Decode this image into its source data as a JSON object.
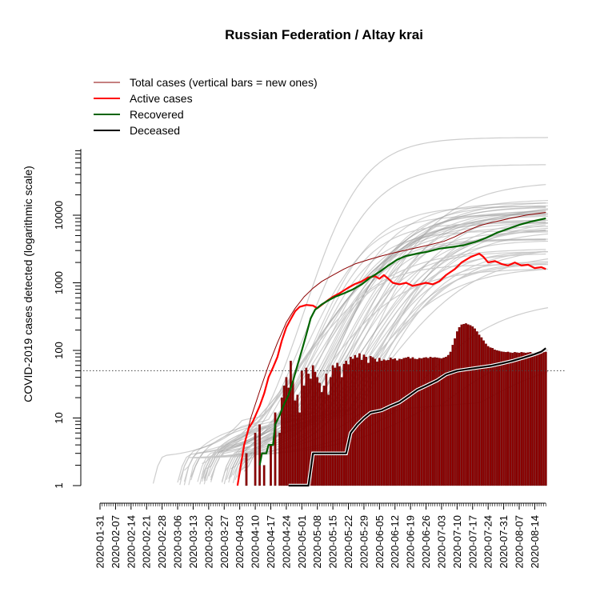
{
  "chart_data": {
    "type": "line",
    "title": "Russian Federation / Altay krai",
    "ylabel": "COVID-2019 cases detected (logarithmic scale)",
    "xlabel": "",
    "yscale": "log",
    "ylim": [
      1,
      100000
    ],
    "y_ticks": [
      "1",
      "10",
      "100",
      "1000",
      "10000"
    ],
    "x_tick_labels": [
      "2020-01-31",
      "2020-02-07",
      "2020-02-14",
      "2020-02-21",
      "2020-02-28",
      "2020-03-06",
      "2020-03-13",
      "2020-03-20",
      "2020-03-27",
      "2020-04-03",
      "2020-04-10",
      "2020-04-17",
      "2020-04-24",
      "2020-05-01",
      "2020-05-08",
      "2020-05-15",
      "2020-05-22",
      "2020-05-29",
      "2020-06-05",
      "2020-06-12",
      "2020-06-19",
      "2020-06-26",
      "2020-07-03",
      "2020-07-10",
      "2020-07-17",
      "2020-07-24",
      "2020-07-31",
      "2020-08-07",
      "2020-08-14"
    ],
    "x_range": [
      "2020-01-31",
      "2020-08-19"
    ],
    "reference_line": 50,
    "legend_position": "top-left",
    "colors": {
      "total": "#8b0000",
      "active": "#ff0000",
      "recovered": "#006400",
      "deceased": "#000000",
      "bars": "#8b0000",
      "background_regions": "#999999"
    },
    "series": [
      {
        "name": "Total cases (vertical bars = new ones)",
        "key": "total",
        "points": [
          [
            "2020-04-02",
            1
          ],
          [
            "2020-04-05",
            4
          ],
          [
            "2020-04-08",
            10
          ],
          [
            "2020-04-12",
            25
          ],
          [
            "2020-04-16",
            60
          ],
          [
            "2020-04-20",
            130
          ],
          [
            "2020-04-24",
            260
          ],
          [
            "2020-04-28",
            420
          ],
          [
            "2020-05-02",
            620
          ],
          [
            "2020-05-06",
            830
          ],
          [
            "2020-05-10",
            1050
          ],
          [
            "2020-05-15",
            1300
          ],
          [
            "2020-05-20",
            1600
          ],
          [
            "2020-05-25",
            1900
          ],
          [
            "2020-05-31",
            2200
          ],
          [
            "2020-06-06",
            2500
          ],
          [
            "2020-06-12",
            2800
          ],
          [
            "2020-06-20",
            3200
          ],
          [
            "2020-06-27",
            3600
          ],
          [
            "2020-07-04",
            4100
          ],
          [
            "2020-07-09",
            4800
          ],
          [
            "2020-07-14",
            5800
          ],
          [
            "2020-07-20",
            7000
          ],
          [
            "2020-07-27",
            8000
          ],
          [
            "2020-08-03",
            9000
          ],
          [
            "2020-08-10",
            10000
          ],
          [
            "2020-08-19",
            11000
          ]
        ]
      },
      {
        "name": "Active cases",
        "key": "active",
        "points": [
          [
            "2020-04-02",
            1
          ],
          [
            "2020-04-05",
            4
          ],
          [
            "2020-04-07",
            7
          ],
          [
            "2020-04-09",
            9
          ],
          [
            "2020-04-12",
            15
          ],
          [
            "2020-04-14",
            23
          ],
          [
            "2020-04-16",
            40
          ],
          [
            "2020-04-18",
            56
          ],
          [
            "2020-04-20",
            80
          ],
          [
            "2020-04-22",
            140
          ],
          [
            "2020-04-24",
            220
          ],
          [
            "2020-04-26",
            290
          ],
          [
            "2020-04-28",
            380
          ],
          [
            "2020-04-30",
            440
          ],
          [
            "2020-05-03",
            470
          ],
          [
            "2020-05-06",
            460
          ],
          [
            "2020-05-08",
            420
          ],
          [
            "2020-05-11",
            500
          ],
          [
            "2020-05-13",
            560
          ],
          [
            "2020-05-15",
            620
          ],
          [
            "2020-05-18",
            700
          ],
          [
            "2020-05-22",
            850
          ],
          [
            "2020-05-25",
            960
          ],
          [
            "2020-05-28",
            1050
          ],
          [
            "2020-05-31",
            1200
          ],
          [
            "2020-06-03",
            1250
          ],
          [
            "2020-06-05",
            1150
          ],
          [
            "2020-06-07",
            1300
          ],
          [
            "2020-06-09",
            1150
          ],
          [
            "2020-06-11",
            1000
          ],
          [
            "2020-06-14",
            950
          ],
          [
            "2020-06-17",
            1000
          ],
          [
            "2020-06-20",
            900
          ],
          [
            "2020-06-23",
            950
          ],
          [
            "2020-06-26",
            1000
          ],
          [
            "2020-06-29",
            950
          ],
          [
            "2020-07-02",
            1050
          ],
          [
            "2020-07-05",
            1300
          ],
          [
            "2020-07-09",
            1600
          ],
          [
            "2020-07-12",
            2000
          ],
          [
            "2020-07-16",
            2400
          ],
          [
            "2020-07-20",
            2700
          ],
          [
            "2020-07-22",
            2400
          ],
          [
            "2020-07-24",
            2000
          ],
          [
            "2020-07-27",
            2100
          ],
          [
            "2020-07-30",
            1900
          ],
          [
            "2020-08-02",
            1800
          ],
          [
            "2020-08-05",
            2000
          ],
          [
            "2020-08-08",
            1800
          ],
          [
            "2020-08-11",
            1850
          ],
          [
            "2020-08-14",
            1650
          ],
          [
            "2020-08-17",
            1700
          ],
          [
            "2020-08-19",
            1600
          ]
        ]
      },
      {
        "name": "Recovered",
        "key": "recovered",
        "points": [
          [
            "2020-04-12",
            2
          ],
          [
            "2020-04-13",
            3
          ],
          [
            "2020-04-15",
            3
          ],
          [
            "2020-04-16",
            4
          ],
          [
            "2020-04-18",
            4
          ],
          [
            "2020-04-19",
            8
          ],
          [
            "2020-04-21",
            11
          ],
          [
            "2020-04-23",
            16
          ],
          [
            "2020-04-25",
            22
          ],
          [
            "2020-04-27",
            35
          ],
          [
            "2020-04-29",
            60
          ],
          [
            "2020-05-01",
            100
          ],
          [
            "2020-05-03",
            170
          ],
          [
            "2020-05-05",
            300
          ],
          [
            "2020-05-07",
            400
          ],
          [
            "2020-05-10",
            480
          ],
          [
            "2020-05-13",
            550
          ],
          [
            "2020-05-16",
            620
          ],
          [
            "2020-05-20",
            700
          ],
          [
            "2020-05-24",
            800
          ],
          [
            "2020-05-28",
            950
          ],
          [
            "2020-06-01",
            1200
          ],
          [
            "2020-06-05",
            1450
          ],
          [
            "2020-06-09",
            1800
          ],
          [
            "2020-06-13",
            2200
          ],
          [
            "2020-06-17",
            2500
          ],
          [
            "2020-06-22",
            2700
          ],
          [
            "2020-06-27",
            2900
          ],
          [
            "2020-07-02",
            3200
          ],
          [
            "2020-07-08",
            3400
          ],
          [
            "2020-07-13",
            3600
          ],
          [
            "2020-07-18",
            4000
          ],
          [
            "2020-07-23",
            4600
          ],
          [
            "2020-07-28",
            5500
          ],
          [
            "2020-08-02",
            6300
          ],
          [
            "2020-08-07",
            7200
          ],
          [
            "2020-08-12",
            8000
          ],
          [
            "2020-08-19",
            9000
          ]
        ]
      },
      {
        "name": "Deceased",
        "key": "deceased",
        "points": [
          [
            "2020-04-25",
            1
          ],
          [
            "2020-05-04",
            1
          ],
          [
            "2020-05-06",
            3
          ],
          [
            "2020-05-21",
            3
          ],
          [
            "2020-05-23",
            6
          ],
          [
            "2020-05-26",
            8
          ],
          [
            "2020-05-29",
            10
          ],
          [
            "2020-06-01",
            12
          ],
          [
            "2020-06-06",
            13
          ],
          [
            "2020-06-10",
            15
          ],
          [
            "2020-06-14",
            17
          ],
          [
            "2020-06-18",
            21
          ],
          [
            "2020-06-22",
            26
          ],
          [
            "2020-06-26",
            30
          ],
          [
            "2020-07-01",
            36
          ],
          [
            "2020-07-05",
            44
          ],
          [
            "2020-07-10",
            50
          ],
          [
            "2020-07-15",
            53
          ],
          [
            "2020-07-20",
            56
          ],
          [
            "2020-07-25",
            59
          ],
          [
            "2020-07-30",
            64
          ],
          [
            "2020-08-04",
            70
          ],
          [
            "2020-08-09",
            78
          ],
          [
            "2020-08-14",
            88
          ],
          [
            "2020-08-17",
            96
          ],
          [
            "2020-08-19",
            108
          ]
        ]
      }
    ],
    "new_cases_bars": [
      [
        "2020-04-06",
        3
      ],
      [
        "2020-04-08",
        1
      ],
      [
        "2020-04-10",
        6
      ],
      [
        "2020-04-12",
        8
      ],
      [
        "2020-04-14",
        2
      ],
      [
        "2020-04-16",
        1
      ],
      [
        "2020-04-17",
        4
      ],
      [
        "2020-04-19",
        12
      ],
      [
        "2020-04-21",
        6
      ],
      [
        "2020-04-22",
        20
      ],
      [
        "2020-04-23",
        30
      ],
      [
        "2020-04-24",
        40
      ],
      [
        "2020-04-25",
        28
      ],
      [
        "2020-04-26",
        70
      ],
      [
        "2020-04-27",
        35
      ],
      [
        "2020-04-28",
        18
      ],
      [
        "2020-04-29",
        22
      ],
      [
        "2020-04-30",
        12
      ],
      [
        "2020-05-01",
        50
      ],
      [
        "2020-05-02",
        30
      ],
      [
        "2020-05-03",
        55
      ],
      [
        "2020-05-04",
        45
      ],
      [
        "2020-05-05",
        38
      ],
      [
        "2020-05-06",
        60
      ],
      [
        "2020-05-07",
        48
      ],
      [
        "2020-05-08",
        40
      ],
      [
        "2020-05-09",
        33
      ],
      [
        "2020-05-10",
        24
      ],
      [
        "2020-05-11",
        30
      ],
      [
        "2020-05-12",
        45
      ],
      [
        "2020-05-13",
        22
      ],
      [
        "2020-05-14",
        40
      ],
      [
        "2020-05-15",
        60
      ],
      [
        "2020-05-16",
        55
      ],
      [
        "2020-05-17",
        65
      ],
      [
        "2020-05-18",
        58
      ],
      [
        "2020-05-19",
        40
      ],
      [
        "2020-05-20",
        63
      ],
      [
        "2020-05-21",
        70
      ],
      [
        "2020-05-22",
        62
      ],
      [
        "2020-05-23",
        80
      ],
      [
        "2020-05-24",
        75
      ],
      [
        "2020-05-25",
        85
      ],
      [
        "2020-05-26",
        78
      ],
      [
        "2020-05-27",
        90
      ],
      [
        "2020-05-28",
        72
      ],
      [
        "2020-05-29",
        86
      ],
      [
        "2020-05-30",
        80
      ],
      [
        "2020-05-31",
        65
      ],
      [
        "2020-06-01",
        82
      ],
      [
        "2020-06-02",
        79
      ],
      [
        "2020-06-03",
        75
      ],
      [
        "2020-06-04",
        68
      ],
      [
        "2020-06-05",
        77
      ],
      [
        "2020-06-06",
        70
      ],
      [
        "2020-06-07",
        73
      ],
      [
        "2020-06-08",
        71
      ],
      [
        "2020-06-09",
        72
      ],
      [
        "2020-06-10",
        78
      ],
      [
        "2020-06-11",
        74
      ],
      [
        "2020-06-12",
        76
      ],
      [
        "2020-06-13",
        71
      ],
      [
        "2020-06-14",
        75
      ],
      [
        "2020-06-15",
        74
      ],
      [
        "2020-06-16",
        77
      ],
      [
        "2020-06-17",
        78
      ],
      [
        "2020-06-18",
        80
      ],
      [
        "2020-06-19",
        76
      ],
      [
        "2020-06-20",
        79
      ],
      [
        "2020-06-21",
        75
      ],
      [
        "2020-06-22",
        74
      ],
      [
        "2020-06-23",
        77
      ],
      [
        "2020-06-24",
        76
      ],
      [
        "2020-06-25",
        78
      ],
      [
        "2020-06-26",
        79
      ],
      [
        "2020-06-27",
        77
      ],
      [
        "2020-06-28",
        80
      ],
      [
        "2020-06-29",
        78
      ],
      [
        "2020-06-30",
        79
      ],
      [
        "2020-07-01",
        78
      ],
      [
        "2020-07-02",
        77
      ],
      [
        "2020-07-03",
        76
      ],
      [
        "2020-07-04",
        78
      ],
      [
        "2020-07-05",
        80
      ],
      [
        "2020-07-06",
        85
      ],
      [
        "2020-07-07",
        95
      ],
      [
        "2020-07-08",
        120
      ],
      [
        "2020-07-09",
        150
      ],
      [
        "2020-07-10",
        190
      ],
      [
        "2020-07-11",
        220
      ],
      [
        "2020-07-12",
        240
      ],
      [
        "2020-07-13",
        245
      ],
      [
        "2020-07-14",
        250
      ],
      [
        "2020-07-15",
        242
      ],
      [
        "2020-07-16",
        235
      ],
      [
        "2020-07-17",
        225
      ],
      [
        "2020-07-18",
        210
      ],
      [
        "2020-07-19",
        190
      ],
      [
        "2020-07-20",
        170
      ],
      [
        "2020-07-21",
        155
      ],
      [
        "2020-07-22",
        140
      ],
      [
        "2020-07-23",
        125
      ],
      [
        "2020-07-24",
        115
      ],
      [
        "2020-07-25",
        110
      ],
      [
        "2020-07-26",
        108
      ],
      [
        "2020-07-27",
        102
      ],
      [
        "2020-07-28",
        100
      ],
      [
        "2020-07-29",
        98
      ],
      [
        "2020-07-30",
        96
      ],
      [
        "2020-07-31",
        95
      ],
      [
        "2020-08-01",
        94
      ],
      [
        "2020-08-02",
        95
      ],
      [
        "2020-08-03",
        93
      ],
      [
        "2020-08-04",
        92
      ],
      [
        "2020-08-05",
        94
      ],
      [
        "2020-08-06",
        93
      ],
      [
        "2020-08-07",
        92
      ],
      [
        "2020-08-08",
        94
      ],
      [
        "2020-08-09",
        93
      ],
      [
        "2020-08-10",
        92
      ],
      [
        "2020-08-11",
        93
      ],
      [
        "2020-08-12",
        94
      ],
      [
        "2020-08-13",
        92
      ],
      [
        "2020-08-14",
        93
      ],
      [
        "2020-08-15",
        94
      ],
      [
        "2020-08-16",
        92
      ],
      [
        "2020-08-17",
        93
      ],
      [
        "2020-08-18",
        94
      ],
      [
        "2020-08-19",
        95
      ]
    ]
  }
}
